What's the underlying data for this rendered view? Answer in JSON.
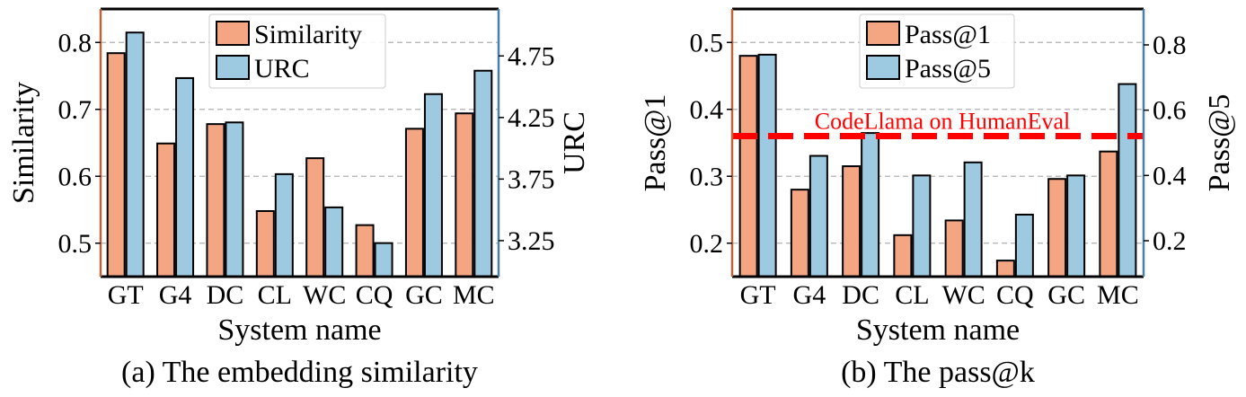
{
  "colors": {
    "left_series": "#f4a582",
    "right_series": "#9ecae1",
    "left_axis": "#c0623a",
    "right_axis": "#4a7fa8",
    "reference_line": "#ff0000",
    "grid": "#b0b0b0"
  },
  "chart_data": [
    {
      "type": "bar",
      "caption": "(a)  The embedding similarity",
      "xlabel": "System name",
      "ylabel": "Similarity",
      "y2label": "URC",
      "categories": [
        "GT",
        "G4",
        "DC",
        "CL",
        "WC",
        "CQ",
        "GC",
        "MC"
      ],
      "ylim": [
        0.45,
        0.85
      ],
      "y2lim": [
        2.9575,
        5.1313
      ],
      "yticks": [
        {
          "value": 0.5,
          "label": "0.5"
        },
        {
          "value": 0.6,
          "label": "0.6"
        },
        {
          "value": 0.7,
          "label": "0.7"
        },
        {
          "value": 0.8,
          "label": "0.8"
        }
      ],
      "y2ticks": [
        {
          "value": 3.25,
          "label": "3.25"
        },
        {
          "value": 3.75,
          "label": "3.75"
        },
        {
          "value": 4.25,
          "label": "4.25"
        },
        {
          "value": 4.75,
          "label": "4.75"
        }
      ],
      "grid": true,
      "legend_position": "top-center",
      "series": [
        {
          "name": "Similarity",
          "axis": "left",
          "values": [
            0.784,
            0.649,
            0.678,
            0.548,
            0.627,
            0.527,
            0.671,
            0.694
          ]
        },
        {
          "name": "URC",
          "axis": "right",
          "values": [
            4.94,
            4.57,
            4.21,
            3.79,
            3.52,
            3.23,
            4.44,
            4.63
          ]
        }
      ]
    },
    {
      "type": "bar",
      "caption": "(b)  The pass@k",
      "xlabel": "System name",
      "ylabel": "Pass@1",
      "y2label": "Pass@5",
      "categories": [
        "GT",
        "G4",
        "DC",
        "CL",
        "WC",
        "CQ",
        "GC",
        "MC"
      ],
      "ylim": [
        0.15,
        0.55
      ],
      "y2lim": [
        0.09,
        0.91
      ],
      "yticks": [
        {
          "value": 0.2,
          "label": "0.2"
        },
        {
          "value": 0.3,
          "label": "0.3"
        },
        {
          "value": 0.4,
          "label": "0.4"
        },
        {
          "value": 0.5,
          "label": "0.5"
        }
      ],
      "y2ticks": [
        {
          "value": 0.2,
          "label": "0.2"
        },
        {
          "value": 0.4,
          "label": "0.4"
        },
        {
          "value": 0.6,
          "label": "0.6"
        },
        {
          "value": 0.8,
          "label": "0.8"
        }
      ],
      "grid": true,
      "legend_position": "top-center",
      "series": [
        {
          "name": "Pass@1",
          "axis": "left",
          "values": [
            0.48,
            0.28,
            0.315,
            0.212,
            0.234,
            0.174,
            0.296,
            0.337
          ]
        },
        {
          "name": "Pass@5",
          "axis": "right",
          "values": [
            0.77,
            0.46,
            0.53,
            0.4,
            0.44,
            0.28,
            0.4,
            0.68
          ]
        }
      ],
      "reference_line": {
        "label": "CodeLlama on HumanEval",
        "value": 0.36,
        "axis": "left"
      }
    }
  ]
}
